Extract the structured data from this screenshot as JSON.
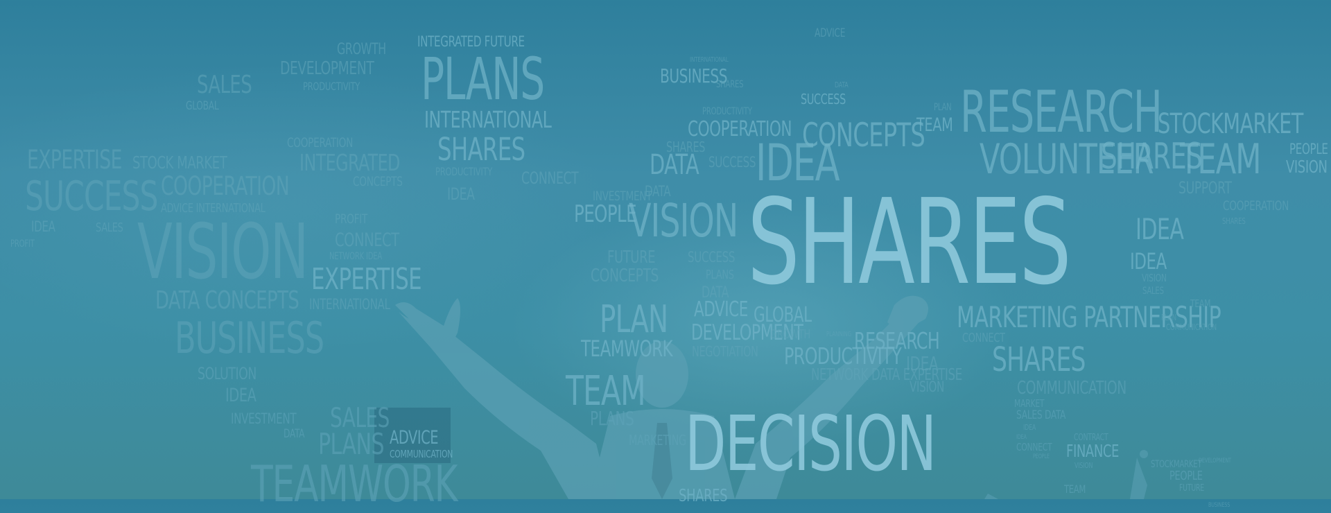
{
  "scene": {
    "colors": {
      "background": "#3a88a3",
      "word_light": "#8ec9dc",
      "word_mid": "#6fb2c7",
      "word_dim": "#5ea3b8"
    },
    "words": [
      "ADVICE",
      "BUSINESS",
      "INTERNATIONAL",
      "GROWTH",
      "DEVELOPMENT",
      "PRODUCTIVITY",
      "INTEGRATED FUTURE",
      "PLANS",
      "SALES",
      "GLOBAL",
      "INTERNATIONAL",
      "SHARES",
      "COOPERATION",
      "INTEGRATED",
      "CONCEPTS",
      "PRODUCTIVITY",
      "CONNECT",
      "IDEA",
      "EXPERTISE",
      "STOCK MARKET",
      "SUCCESS",
      "COOPERATION",
      "ADVICE INTERNATIONAL",
      "IDEA",
      "SALES",
      "PROFIT",
      "VISION",
      "PROFIT",
      "CONNECT",
      "NETWORK IDEA",
      "EXPERTISE",
      "DATA CONCEPTS",
      "INTERNATIONAL",
      "BUSINESS",
      "SOLUTION",
      "IDEA",
      "INVESTMENT",
      "DATA",
      "SALES",
      "PLANS",
      "ADVICE",
      "COMMUNICATION",
      "TEAMWORK",
      "PRODUCTIVITY",
      "SHARES",
      "DATA",
      "SUCCESS",
      "PLAN",
      "TEAM",
      "RESEARCH",
      "STOCKMARKET",
      "COOPERATION",
      "CONCEPTS",
      "SHARES",
      "SUCCESS",
      "DATA",
      "IDEA",
      "VOLUNTEER",
      "SHARES",
      "TEAM",
      "PEOPLE",
      "VISION",
      "DATA",
      "INVESTMENT",
      "PEOPLE",
      "VISION",
      "SHARES",
      "SUPPORT",
      "COOPERATION",
      "SHARES",
      "IDEA",
      "FUTURE",
      "SUCCESS",
      "CONCEPTS",
      "PLANS",
      "IDEA",
      "VISION",
      "SALES",
      "DATA",
      "PLAN",
      "ADVICE",
      "GLOBAL",
      "MARKETING PARTNERSHIP",
      "DEVELOPMENT",
      "GROWTH",
      "PLANNING",
      "RESEARCH",
      "TEAMWORK",
      "NEGOTIATION",
      "PRODUCTIVITY",
      "CONNECT",
      "NETWORK DATA EXPERTISE",
      "IDEA",
      "SHARES",
      "VISION",
      "TEAM",
      "COMMUNICATION",
      "MARKET",
      "SALES DATA",
      "IDEA",
      "PLANS",
      "MARKETING",
      "DECISION",
      "IDEA",
      "CONTRACT",
      "CONNECT",
      "FINANCE",
      "PEOPLE",
      "VISION",
      "SHARES",
      "STOCKMARKET",
      "PEOPLE",
      "FUTURE",
      "BUSINESS",
      "TEAM",
      "DEVELOPMENT",
      "TEAM",
      "PLAN",
      "COMMUNICATION",
      "DATA"
    ]
  }
}
